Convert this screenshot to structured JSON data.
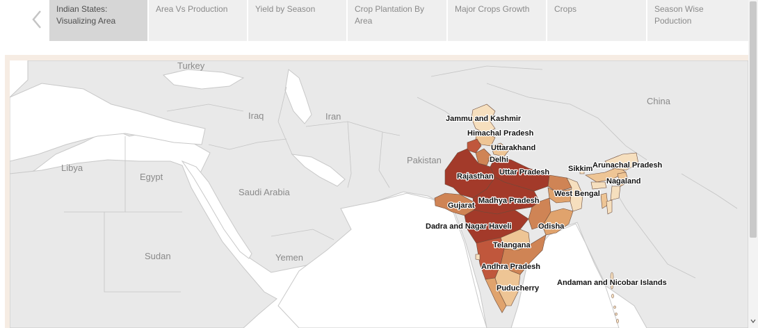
{
  "tabs": [
    {
      "label": "Indian  States: Visualizing Area",
      "active": true
    },
    {
      "label": "Area Vs Production",
      "active": false
    },
    {
      "label": "Yield by Season",
      "active": false
    },
    {
      "label": "Crop Plantation By Area",
      "active": false
    },
    {
      "label": "Major Crops Growth",
      "active": false
    },
    {
      "label": "Crops",
      "active": false
    },
    {
      "label": "Season Wise Poduction",
      "active": false
    }
  ],
  "map": {
    "country_labels": {
      "turkey": "Turkey",
      "iraq": "Iraq",
      "iran": "Iran",
      "china": "China",
      "pakistan": "Pakistan",
      "libya": "Libya",
      "egypt": "Egypt",
      "saudi_arabia": "Saudi Arabia",
      "sudan": "Sudan",
      "yemen": "Yemen"
    },
    "state_labels": {
      "jammu_kashmir": "Jammu and Kashmir",
      "himachal_pradesh": "Himachal Pradesh",
      "uttarakhand": "Uttarakhand",
      "delhi": "Delhi",
      "rajasthan": "Rajasthan",
      "uttar_pradesh": "Uttar Pradesh",
      "sikkim": "Sikkim",
      "arunachal_pradesh": "Arunachal Pradesh",
      "nagaland": "Nagaland",
      "west_bengal": "West Bengal",
      "gujarat": "Gujarat",
      "madhya_pradesh": "Madhya Pradesh",
      "dadra_nagar_haveli": "Dadra and Nagar Haveli",
      "odisha": "Odisha",
      "telangana": "Telangana",
      "andhra_pradesh": "Andhra Pradesh",
      "puducherry": "Puducherry",
      "andaman_nicobar": "Andaman and Nicobar Islands"
    },
    "colors": {
      "highest": "#a33a2a",
      "high": "#c0573c",
      "mid_high": "#cf8455",
      "mid": "#e0a36d",
      "low": "#eec595",
      "lowest": "#f6dfbe",
      "land": "#e9e9e9",
      "sea": "#ffffff",
      "border": "#c8c8c8"
    }
  }
}
